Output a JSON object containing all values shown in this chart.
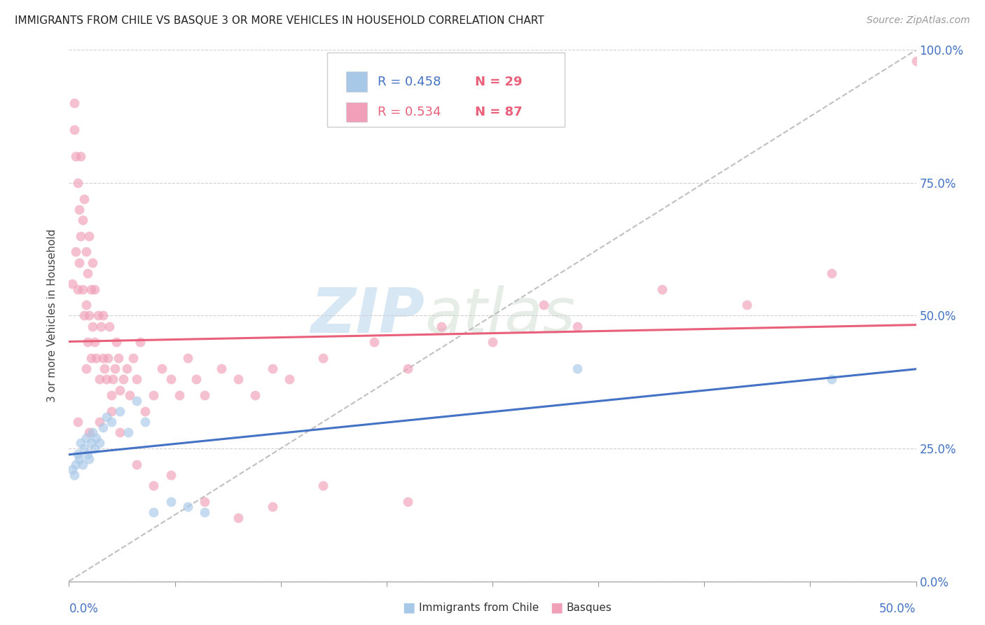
{
  "title": "IMMIGRANTS FROM CHILE VS BASQUE 3 OR MORE VEHICLES IN HOUSEHOLD CORRELATION CHART",
  "source": "Source: ZipAtlas.com",
  "ylabel": "3 or more Vehicles in Household",
  "color_chile": "#a8c8e8",
  "color_basque": "#f0a0b8",
  "color_chile_line": "#4472c4",
  "color_basque_line": "#e8607a",
  "color_diagonal": "#c0c0c0",
  "xlim": [
    0,
    50
  ],
  "ylim": [
    0,
    100
  ],
  "ytick_values": [
    0,
    25,
    50,
    75,
    100
  ],
  "watermark_zip": "ZIP",
  "watermark_atlas": "atlas",
  "legend_chile_r": "R = 0.458",
  "legend_chile_n": "N = 29",
  "legend_basque_r": "R = 0.534",
  "legend_basque_n": "N = 87",
  "chile_x": [
    0.2,
    0.3,
    0.4,
    0.5,
    0.6,
    0.7,
    0.8,
    0.9,
    1.0,
    1.1,
    1.2,
    1.3,
    1.4,
    1.5,
    1.6,
    1.8,
    2.0,
    2.2,
    2.5,
    3.0,
    3.5,
    4.0,
    4.5,
    5.0,
    6.0,
    7.0,
    8.0,
    30.0,
    45.0
  ],
  "chile_y": [
    21,
    20,
    22,
    24,
    23,
    26,
    22,
    25,
    27,
    24,
    23,
    26,
    28,
    25,
    27,
    26,
    29,
    31,
    30,
    32,
    28,
    34,
    30,
    13,
    15,
    14,
    13,
    40,
    38
  ],
  "basque_x": [
    0.2,
    0.3,
    0.3,
    0.4,
    0.4,
    0.5,
    0.5,
    0.6,
    0.6,
    0.7,
    0.7,
    0.8,
    0.8,
    0.9,
    0.9,
    1.0,
    1.0,
    1.0,
    1.1,
    1.1,
    1.2,
    1.2,
    1.3,
    1.3,
    1.4,
    1.4,
    1.5,
    1.5,
    1.6,
    1.7,
    1.8,
    1.9,
    2.0,
    2.0,
    2.1,
    2.2,
    2.3,
    2.4,
    2.5,
    2.6,
    2.7,
    2.8,
    2.9,
    3.0,
    3.2,
    3.4,
    3.6,
    3.8,
    4.0,
    4.2,
    4.5,
    5.0,
    5.5,
    6.0,
    6.5,
    7.0,
    7.5,
    8.0,
    9.0,
    10.0,
    11.0,
    12.0,
    13.0,
    15.0,
    18.0,
    20.0,
    22.0,
    25.0,
    28.0,
    30.0,
    35.0,
    40.0,
    45.0,
    50.0,
    0.5,
    1.2,
    1.8,
    2.5,
    3.0,
    4.0,
    5.0,
    6.0,
    8.0,
    10.0,
    12.0,
    15.0,
    20.0
  ],
  "basque_y": [
    56,
    85,
    90,
    62,
    80,
    55,
    75,
    60,
    70,
    65,
    80,
    55,
    68,
    72,
    50,
    40,
    52,
    62,
    45,
    58,
    50,
    65,
    42,
    55,
    48,
    60,
    45,
    55,
    42,
    50,
    38,
    48,
    42,
    50,
    40,
    38,
    42,
    48,
    35,
    38,
    40,
    45,
    42,
    36,
    38,
    40,
    35,
    42,
    38,
    45,
    32,
    35,
    40,
    38,
    35,
    42,
    38,
    35,
    40,
    38,
    35,
    40,
    38,
    42,
    45,
    40,
    48,
    45,
    52,
    48,
    55,
    52,
    58,
    98,
    30,
    28,
    30,
    32,
    28,
    22,
    18,
    20,
    15,
    12,
    14,
    18,
    15
  ]
}
